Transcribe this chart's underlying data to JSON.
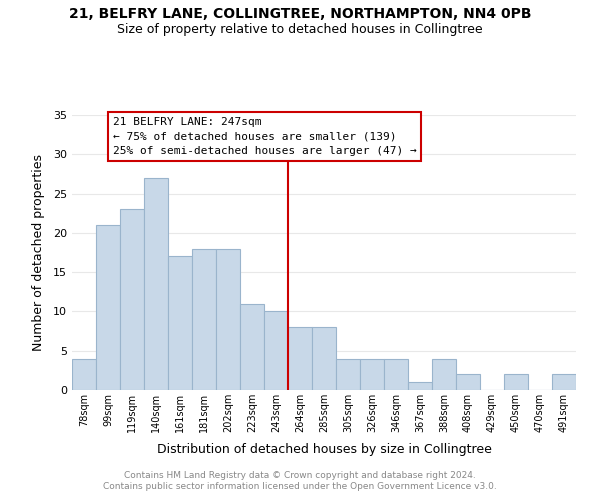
{
  "title_line1": "21, BELFRY LANE, COLLINGTREE, NORTHAMPTON, NN4 0PB",
  "title_line2": "Size of property relative to detached houses in Collingtree",
  "xlabel": "Distribution of detached houses by size in Collingtree",
  "ylabel": "Number of detached properties",
  "bar_labels": [
    "78sqm",
    "99sqm",
    "119sqm",
    "140sqm",
    "161sqm",
    "181sqm",
    "202sqm",
    "223sqm",
    "243sqm",
    "264sqm",
    "285sqm",
    "305sqm",
    "326sqm",
    "346sqm",
    "367sqm",
    "388sqm",
    "408sqm",
    "429sqm",
    "450sqm",
    "470sqm",
    "491sqm"
  ],
  "bar_values": [
    4,
    21,
    23,
    27,
    17,
    18,
    18,
    11,
    10,
    8,
    8,
    4,
    4,
    4,
    1,
    4,
    2,
    0,
    2,
    0,
    2
  ],
  "bar_color": "#c8d8e8",
  "bar_edge_color": "#9ab4cc",
  "ylim": [
    0,
    35
  ],
  "yticks": [
    0,
    5,
    10,
    15,
    20,
    25,
    30,
    35
  ],
  "property_line_x": 8.5,
  "property_line_color": "#cc0000",
  "annotation_title": "21 BELFRY LANE: 247sqm",
  "annotation_line1": "← 75% of detached houses are smaller (139)",
  "annotation_line2": "25% of semi-detached houses are larger (47) →",
  "annotation_box_color": "#ffffff",
  "annotation_box_edge": "#cc0000",
  "footer_line1": "Contains HM Land Registry data © Crown copyright and database right 2024.",
  "footer_line2": "Contains public sector information licensed under the Open Government Licence v3.0.",
  "background_color": "#ffffff",
  "grid_color": "#e8e8e8"
}
